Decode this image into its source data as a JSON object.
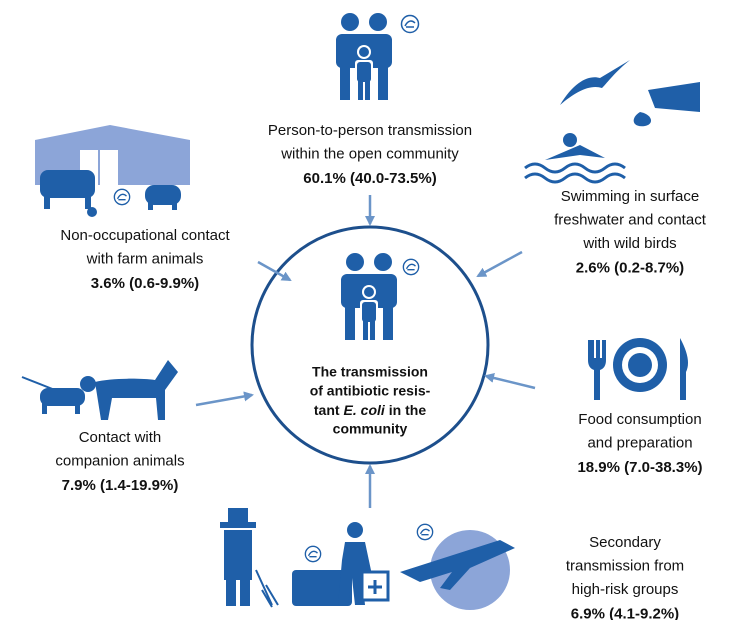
{
  "center": {
    "lines": [
      "The transmission",
      "of antibiotic resis-"
    ],
    "line3": [
      "tant",
      "E. coli",
      "in the"
    ],
    "line4": "community"
  },
  "nodes": [
    {
      "label": [
        "Person-to-person transmission",
        "within the open community"
      ],
      "estimate": "60.1% (40.0-73.5%)"
    },
    {
      "label": [
        "Swimming in surface",
        "freshwater and contact",
        "with wild birds"
      ],
      "estimate": "2.6% (0.2-8.7%)"
    },
    {
      "label": [
        "Non-occupational contact",
        "with farm animals"
      ],
      "estimate": "3.6% (0.6-9.9%)"
    },
    {
      "label": [
        "Contact with",
        "companion animals"
      ],
      "estimate": "7.9% (1.4-19.9%)"
    },
    {
      "label": [
        "Food consumption",
        "and preparation"
      ],
      "estimate": "18.9% (7.0-38.3%)"
    },
    {
      "label": [
        "Secondary",
        "transmission from",
        "high-risk groups"
      ],
      "estimate": "6.9% (4.1-9.2%)"
    }
  ]
}
